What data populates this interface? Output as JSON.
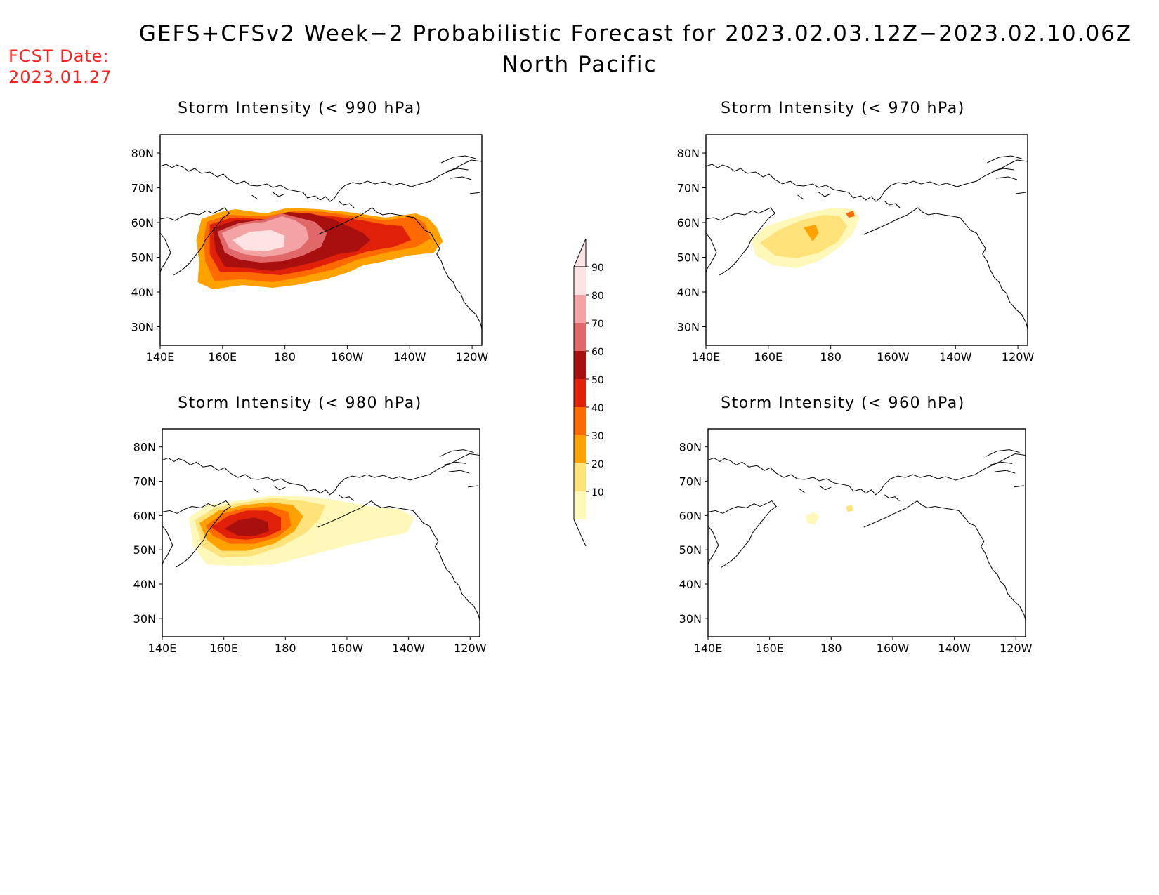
{
  "header": {
    "title": "GEFS+CFSv2 Week−2 Probabilistic Forecast for 2023.02.03.12Z−2023.02.10.06Z",
    "subtitle": "North Pacific",
    "fcst_label": "FCST Date:",
    "fcst_date": "2023.01.27"
  },
  "panels": [
    {
      "title": "Storm Intensity (< 990 hPa)"
    },
    {
      "title": "Storm Intensity (< 970 hPa)"
    },
    {
      "title": "Storm Intensity (< 980 hPa)"
    },
    {
      "title": "Storm Intensity (< 960 hPa)"
    }
  ],
  "axes": {
    "lat_labels": [
      "80N",
      "70N",
      "60N",
      "50N",
      "40N",
      "30N"
    ],
    "lon_labels": [
      "140E",
      "160E",
      "180",
      "160W",
      "140W",
      "120W"
    ]
  },
  "colorbar": {
    "levels": [
      "90",
      "80",
      "70",
      "60",
      "50",
      "40",
      "30",
      "20",
      "10"
    ],
    "colors": [
      "#fde3e3",
      "#f3a3a3",
      "#e06868",
      "#a81010",
      "#e02008",
      "#ff6a00",
      "#ffa200",
      "#ffe27a",
      "#fff8b8"
    ]
  }
}
